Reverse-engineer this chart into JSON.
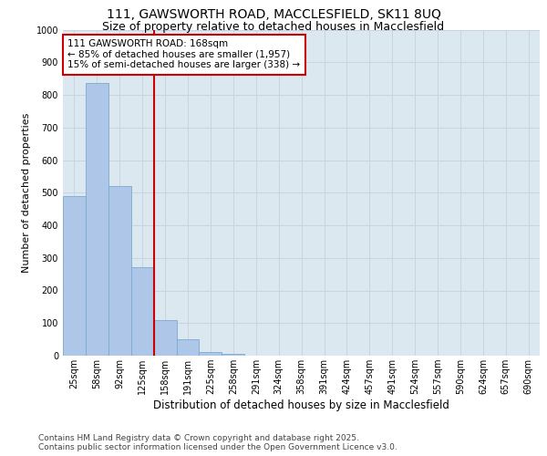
{
  "title_line1": "111, GAWSWORTH ROAD, MACCLESFIELD, SK11 8UQ",
  "title_line2": "Size of property relative to detached houses in Macclesfield",
  "xlabel": "Distribution of detached houses by size in Macclesfield",
  "ylabel": "Number of detached properties",
  "categories": [
    "25sqm",
    "58sqm",
    "92sqm",
    "125sqm",
    "158sqm",
    "191sqm",
    "225sqm",
    "258sqm",
    "291sqm",
    "324sqm",
    "358sqm",
    "391sqm",
    "424sqm",
    "457sqm",
    "491sqm",
    "524sqm",
    "557sqm",
    "590sqm",
    "624sqm",
    "657sqm",
    "690sqm"
  ],
  "values": [
    490,
    835,
    520,
    270,
    110,
    50,
    10,
    5,
    0,
    0,
    0,
    0,
    0,
    0,
    0,
    0,
    0,
    0,
    0,
    0,
    0
  ],
  "bar_color": "#aec6e8",
  "bar_edge_color": "#7aaad0",
  "vline_color": "#cc0000",
  "vline_bar_index": 4,
  "annotation_box_text": "111 GAWSWORTH ROAD: 168sqm\n← 85% of detached houses are smaller (1,957)\n15% of semi-detached houses are larger (338) →",
  "annotation_box_color": "#cc0000",
  "annotation_text_fontsize": 7.5,
  "ylim": [
    0,
    1000
  ],
  "yticks": [
    0,
    100,
    200,
    300,
    400,
    500,
    600,
    700,
    800,
    900,
    1000
  ],
  "grid_color": "#c8d4e4",
  "bg_color": "#dce8f0",
  "footer_text": "Contains HM Land Registry data © Crown copyright and database right 2025.\nContains public sector information licensed under the Open Government Licence v3.0.",
  "title_fontsize": 10,
  "subtitle_fontsize": 9,
  "xlabel_fontsize": 8.5,
  "ylabel_fontsize": 8,
  "tick_fontsize": 7,
  "footer_fontsize": 6.5
}
